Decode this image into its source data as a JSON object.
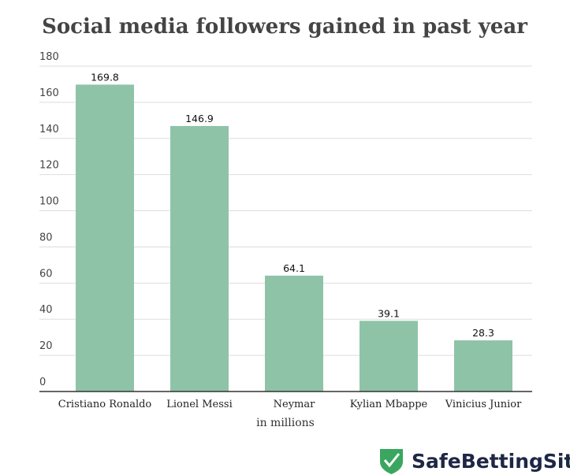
{
  "chart_data": {
    "type": "bar",
    "title": "Social media followers gained in past year",
    "xlabel": "in millions",
    "ylabel": "",
    "categories": [
      "Cristiano Ronaldo",
      "Lionel Messi",
      "Neymar",
      "Kylian Mbappe",
      "Vinicius Junior"
    ],
    "values": [
      169.8,
      146.9,
      64.1,
      39.1,
      28.3
    ],
    "value_labels": [
      "169.8",
      "146.9",
      "64.1",
      "39.1",
      "28.3"
    ],
    "ylim": [
      0,
      180
    ],
    "yticks": [
      0,
      20,
      40,
      60,
      80,
      100,
      120,
      140,
      160,
      180
    ],
    "grid": true,
    "bar_color": "#8fc3a8"
  },
  "branding": {
    "logo_text": "SafeBettingSites",
    "logo_color": "#3aa660"
  }
}
